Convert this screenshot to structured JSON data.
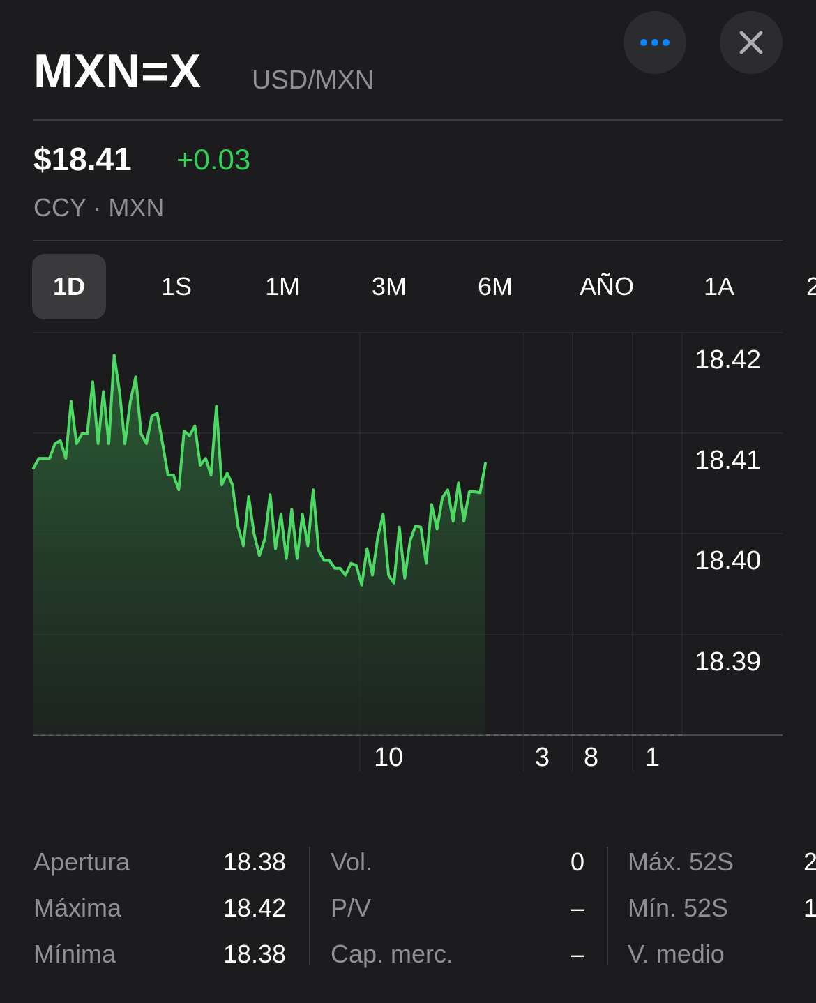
{
  "header": {
    "symbol": "MXN=X",
    "pair": "USD/MXN",
    "more_icon": "ellipsis-icon",
    "close_icon": "close-icon"
  },
  "quote": {
    "price": "$18.41",
    "change": "+0.03",
    "meta": "CCY · MXN"
  },
  "range_tabs": [
    {
      "label": "1D",
      "active": true
    },
    {
      "label": "1S",
      "active": false
    },
    {
      "label": "1M",
      "active": false
    },
    {
      "label": "3M",
      "active": false
    },
    {
      "label": "6M",
      "active": false
    },
    {
      "label": "AÑO",
      "active": false
    },
    {
      "label": "1A",
      "active": false
    },
    {
      "label": "2",
      "active": false
    }
  ],
  "colors": {
    "background": "#1c1c1e",
    "positive": "#30d158",
    "line": "#4cd964",
    "muted": "#8e8e93",
    "accent": "#0a84ff"
  },
  "chart_data": {
    "type": "area",
    "y_ticks": [
      "18.42",
      "18.41",
      "18.40",
      "18.39"
    ],
    "x_ticks": [
      "10",
      "3",
      "8",
      "1"
    ],
    "ylim": [
      18.3815,
      18.4225
    ],
    "grid": true,
    "baseline": 18.3815,
    "values": [
      18.4087,
      18.4097,
      18.4097,
      18.4097,
      18.4112,
      18.4115,
      18.4097,
      18.4155,
      18.4112,
      18.4122,
      18.4122,
      18.4175,
      18.4112,
      18.4165,
      18.4112,
      18.4202,
      18.4165,
      18.4112,
      18.4155,
      18.418,
      18.4122,
      18.4112,
      18.414,
      18.4143,
      18.4112,
      18.408,
      18.408,
      18.4065,
      18.4125,
      18.412,
      18.413,
      18.409,
      18.4097,
      18.408,
      18.415,
      18.407,
      18.4082,
      18.407,
      18.4028,
      18.4008,
      18.4058,
      18.402,
      18.3998,
      18.4015,
      18.406,
      18.4005,
      18.404,
      18.3995,
      18.4045,
      18.3995,
      18.404,
      18.4008,
      18.4065,
      18.4003,
      18.3993,
      18.3993,
      18.3985,
      18.3985,
      18.3978,
      18.399,
      18.3988,
      18.3968,
      18.4005,
      18.3978,
      18.4017,
      18.404,
      18.3978,
      18.397,
      18.4027,
      18.3975,
      18.4013,
      18.4028,
      18.4027,
      18.399,
      18.405,
      18.4025,
      18.4057,
      18.4065,
      18.4033,
      18.4072,
      18.4033,
      18.4063,
      18.4063,
      18.4062,
      18.4092
    ]
  },
  "stats": {
    "col1": [
      {
        "label": "Apertura",
        "value": "18.38"
      },
      {
        "label": "Máxima",
        "value": "18.42"
      },
      {
        "label": "Mínima",
        "value": "18.38"
      }
    ],
    "col2": [
      {
        "label": "Vol.",
        "value": "0"
      },
      {
        "label": "P/V",
        "value": "–"
      },
      {
        "label": "Cap. merc.",
        "value": "–"
      }
    ],
    "col3": [
      {
        "label": "Máx. 52S",
        "value": "2"
      },
      {
        "label": "Mín. 52S",
        "value": "1"
      },
      {
        "label": "V. medio",
        "value": ""
      }
    ]
  }
}
